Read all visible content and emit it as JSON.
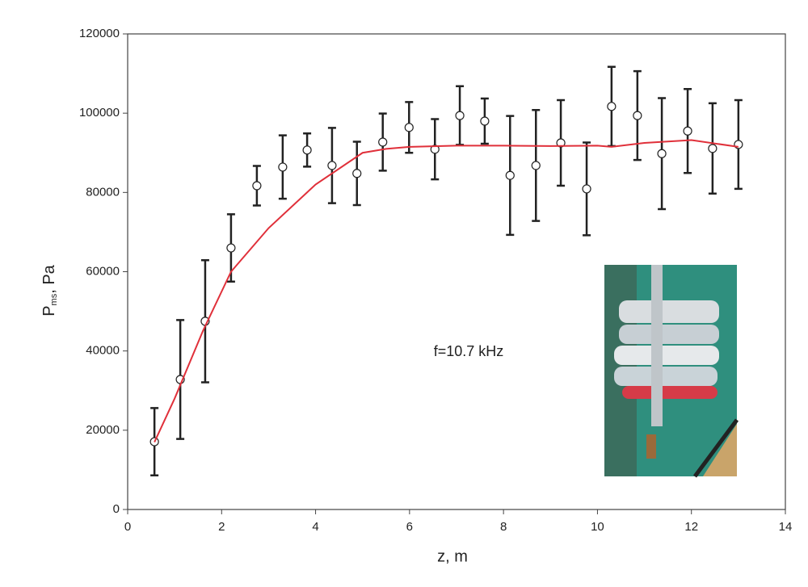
{
  "chart_data": {
    "type": "scatter",
    "x_label": "z, m",
    "y_label": "P",
    "y_label_sub": "ms",
    "y_label_unit": ", Pa",
    "annotation": "f=10.7 kHz",
    "xlim": [
      0,
      14
    ],
    "xticks": [
      0,
      2,
      4,
      6,
      8,
      10,
      12,
      14
    ],
    "ylim": [
      0,
      120000
    ],
    "yticks": [
      0,
      20000,
      40000,
      60000,
      80000,
      100000,
      120000
    ],
    "series": [
      {
        "type": "scatter",
        "color": "#222222",
        "x": [
          0.57,
          1.12,
          1.65,
          2.2,
          2.75,
          3.3,
          3.82,
          4.35,
          4.88,
          5.43,
          5.99,
          6.54,
          7.07,
          7.6,
          8.14,
          8.69,
          9.22,
          9.77,
          10.3,
          10.85,
          11.37,
          11.92,
          12.45,
          13.0
        ],
        "values": [
          17100,
          32800,
          47500,
          66000,
          81700,
          86400,
          90700,
          86800,
          84800,
          92700,
          96400,
          90900,
          99400,
          98000,
          84300,
          86800,
          92500,
          80900,
          101700,
          99400,
          89800,
          95500,
          91100,
          92100
        ],
        "errors": [
          8500,
          15000,
          15400,
          8500,
          5000,
          8000,
          4200,
          9500,
          8000,
          7200,
          6400,
          7600,
          7400,
          5700,
          15000,
          14000,
          10800,
          11700,
          10000,
          11200,
          14000,
          10600,
          11400,
          11200
        ]
      },
      {
        "type": "line",
        "color": "#e0303a",
        "x": [
          0.57,
          1,
          1.6,
          2.2,
          3,
          4,
          5,
          5.5,
          6,
          7,
          8,
          9,
          10,
          10.3,
          11,
          12,
          13
        ],
        "values": [
          17000,
          28000,
          45000,
          60000,
          71000,
          82000,
          90000,
          91000,
          91500,
          91800,
          91800,
          91700,
          91800,
          91500,
          92500,
          93200,
          91500
        ]
      }
    ]
  }
}
